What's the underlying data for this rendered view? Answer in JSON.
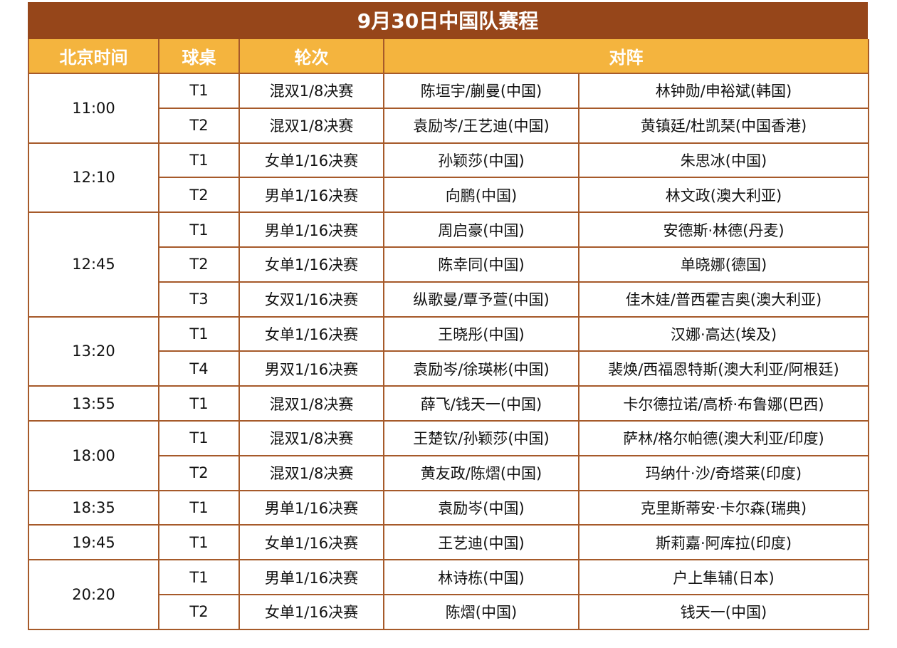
{
  "title": "9月30日中国队赛程",
  "headers": [
    "北京时间",
    "球桌",
    "轮次",
    "对阵"
  ],
  "groups": [
    {
      "time": "11:00",
      "matches": [
        {
          "table": "T1",
          "round": "混双1/8决赛",
          "a": "陈垣宇/蒯曼(中国)",
          "b": "林钟勋/申裕斌(韩国)"
        },
        {
          "table": "T2",
          "round": "混双1/8决赛",
          "a": "袁励岑/王艺迪(中国)",
          "b": "黄镇廷/杜凯琹(中国香港)"
        }
      ]
    },
    {
      "time": "12:10",
      "matches": [
        {
          "table": "T1",
          "round": "女单1/16决赛",
          "a": "孙颖莎(中国)",
          "b": "朱思冰(中国)"
        },
        {
          "table": "T2",
          "round": "男单1/16决赛",
          "a": "向鹏(中国)",
          "b": "林文政(澳大利亚)"
        }
      ]
    },
    {
      "time": "12:45",
      "matches": [
        {
          "table": "T1",
          "round": "男单1/16决赛",
          "a": "周启豪(中国)",
          "b": "安德斯·林德(丹麦)"
        },
        {
          "table": "T2",
          "round": "女单1/16决赛",
          "a": "陈幸同(中国)",
          "b": "单晓娜(德国)"
        },
        {
          "table": "T3",
          "round": "女双1/16决赛",
          "a": "纵歌曼/覃予萱(中国)",
          "b": "佳木娃/普西霍吉奥(澳大利亚)"
        }
      ]
    },
    {
      "time": "13:20",
      "matches": [
        {
          "table": "T1",
          "round": "女单1/16决赛",
          "a": "王晓彤(中国)",
          "b": "汉娜·高达(埃及)"
        },
        {
          "table": "T4",
          "round": "男双1/16决赛",
          "a": "袁励岑/徐瑛彬(中国)",
          "b": "裴焕/西福恩特斯(澳大利亚/阿根廷)"
        }
      ]
    },
    {
      "time": "13:55",
      "matches": [
        {
          "table": "T1",
          "round": "混双1/8决赛",
          "a": "薛飞/钱天一(中国)",
          "b": "卡尔德拉诺/高桥·布鲁娜(巴西)"
        }
      ]
    },
    {
      "time": "18:00",
      "matches": [
        {
          "table": "T1",
          "round": "混双1/8决赛",
          "a": "王楚钦/孙颖莎(中国)",
          "b": "萨林/格尔帕德(澳大利亚/印度)"
        },
        {
          "table": "T2",
          "round": "混双1/8决赛",
          "a": "黄友政/陈熠(中国)",
          "b": "玛纳什·沙/奇塔莱(印度)"
        }
      ]
    },
    {
      "time": "18:35",
      "matches": [
        {
          "table": "T1",
          "round": "男单1/16决赛",
          "a": "袁励岑(中国)",
          "b": "克里斯蒂安·卡尔森(瑞典)"
        }
      ]
    },
    {
      "time": "19:45",
      "matches": [
        {
          "table": "T1",
          "round": "女单1/16决赛",
          "a": "王艺迪(中国)",
          "b": "斯莉嘉·阿库拉(印度)"
        }
      ]
    },
    {
      "time": "20:20",
      "matches": [
        {
          "table": "T1",
          "round": "男单1/16决赛",
          "a": "林诗栋(中国)",
          "b": "户上隼辅(日本)"
        },
        {
          "table": "T2",
          "round": "女单1/16决赛",
          "a": "陈熠(中国)",
          "b": "钱天一(中国)"
        }
      ]
    }
  ]
}
